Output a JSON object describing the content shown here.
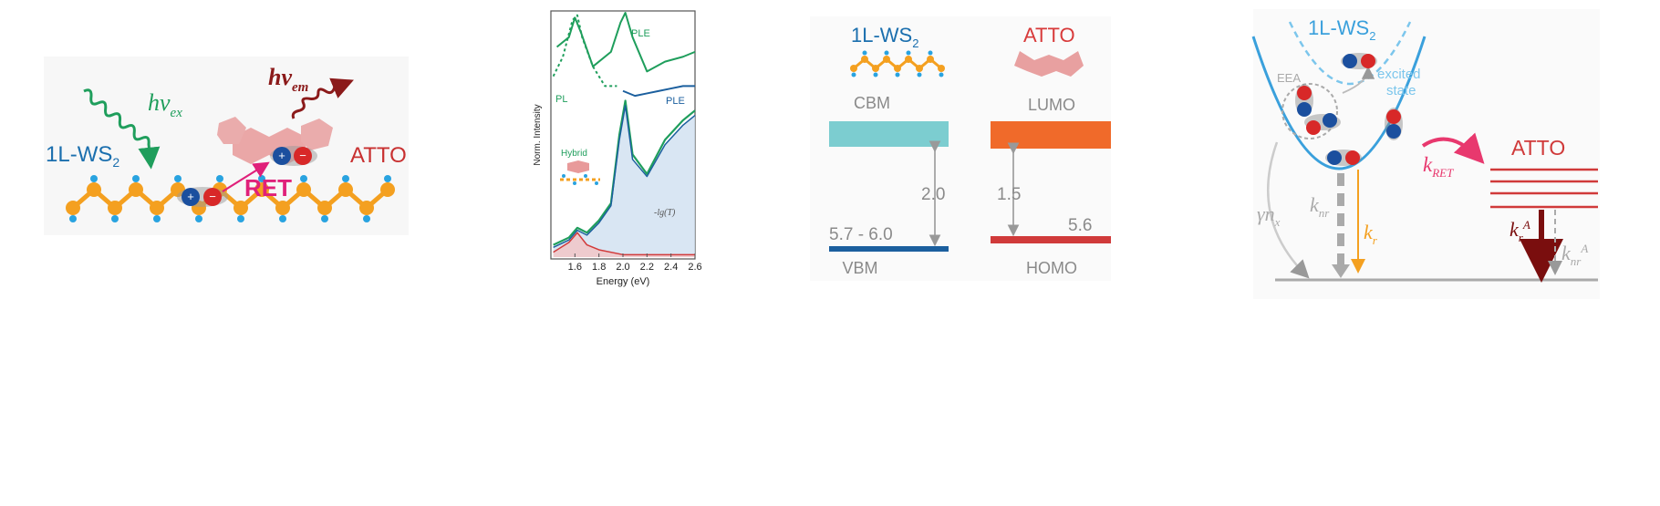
{
  "panel_a": {
    "material": "1L-WS",
    "material_sub": "2",
    "excitation_sym": "hν",
    "excitation_sub": "ex",
    "emission_sym": "hν",
    "emission_sub": "em",
    "transfer_label": "RET",
    "dye_label": "ATTO"
  },
  "panel_b": {
    "xlabel": "Energy (eV)",
    "ylabel": "Norm. Intensity",
    "label_ple_top": "PLE",
    "label_pl": "PL",
    "label_ple_blue": "PLE",
    "label_hybrid": "Hybrid",
    "label_absorb": "-lg(T)",
    "colors": {
      "green": "#1f9e5c",
      "blue": "#1b5f9e",
      "red": "#d23a3a",
      "absorb_fill": "#cfe0f0"
    },
    "chart_data": {
      "type": "line",
      "xlabel": "Energy (eV)",
      "ylabel": "Norm. Intensity",
      "xlim": [
        1.4,
        2.6
      ],
      "xticks": [
        "1.6",
        "1.8",
        "2.0",
        "2.2",
        "2.4",
        "2.6"
      ],
      "series": [
        {
          "name": "PLE",
          "x": [
            1.45,
            1.55,
            1.6,
            1.65,
            1.75,
            1.9,
            1.98,
            2.02,
            2.08,
            2.2,
            2.35,
            2.5,
            2.6
          ],
          "y": [
            0.86,
            0.9,
            0.98,
            0.92,
            0.78,
            0.84,
            0.96,
            1.0,
            0.9,
            0.76,
            0.8,
            0.82,
            0.84
          ]
        },
        {
          "name": "PL",
          "x": [
            1.42,
            1.5,
            1.58,
            1.62,
            1.66,
            1.75,
            1.85,
            1.95
          ],
          "y": [
            0.74,
            0.82,
            0.97,
            0.99,
            0.9,
            0.78,
            0.7,
            0.7
          ]
        },
        {
          "name": "PLE",
          "x": [
            2.0,
            2.1,
            2.2,
            2.3,
            2.4,
            2.5,
            2.6
          ],
          "y": [
            0.68,
            0.66,
            0.67,
            0.68,
            0.69,
            0.7,
            0.7
          ]
        },
        {
          "name": "Hybrid",
          "x": [
            1.42,
            1.55,
            1.62,
            1.7,
            1.8,
            1.9,
            1.97,
            2.02,
            2.08,
            2.2,
            2.35,
            2.5,
            2.6
          ],
          "y": [
            0.05,
            0.08,
            0.12,
            0.1,
            0.15,
            0.22,
            0.5,
            0.64,
            0.42,
            0.34,
            0.48,
            0.56,
            0.6
          ]
        },
        {
          "name": "-lg(T)",
          "x": [
            1.42,
            1.55,
            1.62,
            1.7,
            1.8,
            1.9,
            1.97,
            2.02,
            2.08,
            2.2,
            2.35,
            2.5,
            2.6
          ],
          "y": [
            0.04,
            0.07,
            0.11,
            0.09,
            0.14,
            0.21,
            0.48,
            0.62,
            0.4,
            0.33,
            0.46,
            0.54,
            0.58
          ]
        },
        {
          "name": "",
          "x": [
            1.42,
            1.55,
            1.62,
            1.7,
            1.8,
            2.0,
            2.6
          ],
          "y": [
            0.02,
            0.06,
            0.1,
            0.05,
            0.03,
            0.01,
            0.01
          ]
        }
      ]
    }
  },
  "panel_c": {
    "ws2_label": "1L-WS",
    "ws2_sub": "2",
    "atto_label": "ATTO",
    "cbm": "CBM",
    "vbm": "VBM",
    "lumo": "LUMO",
    "homo": "HOMO",
    "gap_ws2": "2.0",
    "gap_atto": "1.5",
    "ws2_energy": "5.7 - 6.0",
    "atto_energy": "5.6"
  },
  "panel_d": {
    "ws2_label": "1L-WS",
    "ws2_sub": "2",
    "eea": "EEA",
    "excited_state_1": "excited",
    "excited_state_2": "state",
    "k_ret": "k",
    "k_ret_sub": "RET",
    "atto_label": "ATTO",
    "gamma": "γn",
    "gamma_sub": "x",
    "k_nr": "k",
    "k_nr_sub": "nr",
    "k_r": "k",
    "k_r_sub": "r",
    "k_rA": "k",
    "k_rA_sub": "r",
    "k_rA_sup": "A",
    "k_nrA": "k",
    "k_nrA_sub": "nr",
    "k_nrA_sup": "A"
  }
}
